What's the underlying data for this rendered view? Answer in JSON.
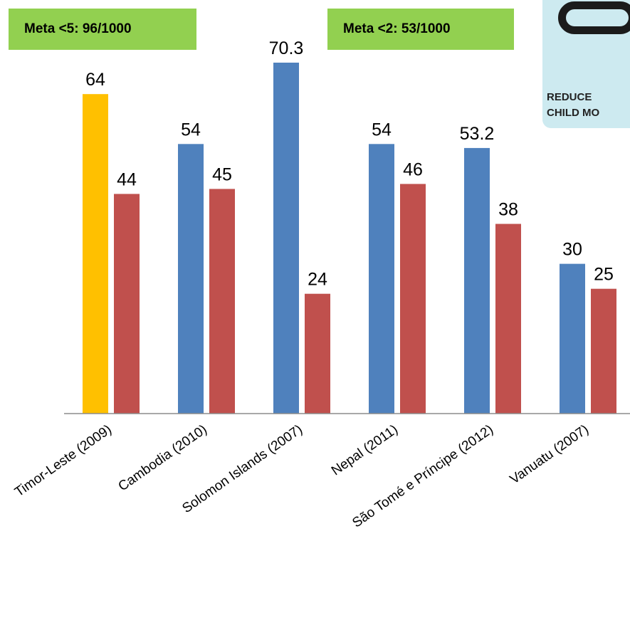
{
  "annotations": {
    "meta_under5": "Meta <5: 96/1000",
    "meta_under2": "Meta <2: 53/1000"
  },
  "badge": {
    "line1": "REDUCE",
    "line2": "CHILD MO",
    "icon": "mdg-goal-icon"
  },
  "colors": {
    "series1": "#4f81bd",
    "series1_highlight": "#ffc000",
    "series2": "#c0504d",
    "meta_box": "#92d050",
    "badge_bg": "#cdeaf0"
  },
  "chart_data": {
    "type": "bar",
    "title": "",
    "xlabel": "",
    "ylabel": "",
    "ylim": [
      0,
      80
    ],
    "grid": false,
    "legend": "none",
    "categories": [
      "Timor-Leste (2009)",
      "Cambodia (2010)",
      "Solomon Islands (2007)",
      "Nepal (2011)",
      "São Tomé e  Príncipe (2012)",
      "Vanuatu (2007)"
    ],
    "series": [
      {
        "values": [
          64,
          54,
          70.3,
          54,
          53.2,
          30
        ],
        "labels": [
          "64",
          "54",
          "70.3",
          "54",
          "53.2",
          "30"
        ]
      },
      {
        "values": [
          44,
          45,
          24,
          46,
          38,
          25
        ],
        "labels": [
          "44",
          "45",
          "24",
          "46",
          "38",
          "25"
        ]
      }
    ],
    "highlight": {
      "series": 0,
      "category": 0
    }
  }
}
